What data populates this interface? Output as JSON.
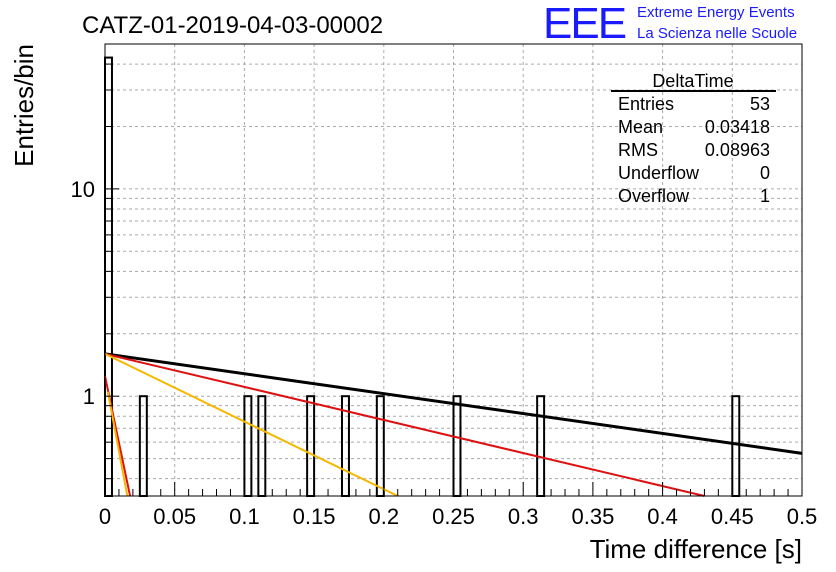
{
  "title": "CATZ-01-2019-04-03-00002",
  "logo": {
    "mark": "EEE",
    "line1": "Extreme Energy Events",
    "line2": "La Scienza nelle Scuole"
  },
  "stats": {
    "name": "DeltaTime",
    "rows": [
      {
        "label": "Entries",
        "value": "53"
      },
      {
        "label": "Mean",
        "value": "0.03418"
      },
      {
        "label": "RMS",
        "value": "0.08963"
      },
      {
        "label": "Underflow",
        "value": "0"
      },
      {
        "label": "Overflow",
        "value": "1"
      }
    ]
  },
  "chart_data": {
    "type": "bar",
    "title": "CATZ-01-2019-04-03-00002",
    "xlabel": "Time difference [s]",
    "ylabel": "Entries/bin",
    "xlim": [
      0,
      0.5
    ],
    "ylim": [
      0.33,
      50
    ],
    "yscale": "log",
    "grid": true,
    "x_ticks": [
      "0",
      "0.05",
      "0.1",
      "0.15",
      "0.2",
      "0.25",
      "0.3",
      "0.35",
      "0.4",
      "0.45",
      "0.5"
    ],
    "y_ticks": [
      "1",
      "10"
    ],
    "bin_width": 0.005,
    "bins": [
      {
        "x": 0.0,
        "value": 43
      },
      {
        "x": 0.025,
        "value": 1
      },
      {
        "x": 0.1,
        "value": 1
      },
      {
        "x": 0.11,
        "value": 1
      },
      {
        "x": 0.145,
        "value": 1
      },
      {
        "x": 0.17,
        "value": 1
      },
      {
        "x": 0.195,
        "value": 1
      },
      {
        "x": 0.25,
        "value": 1
      },
      {
        "x": 0.31,
        "value": 1
      },
      {
        "x": 0.45,
        "value": 1
      }
    ],
    "fits": [
      {
        "color": "#000000",
        "x": [
          0,
          0.5
        ],
        "y": [
          1.6,
          0.53
        ]
      },
      {
        "color": "#dd1111",
        "x": [
          0,
          0.43
        ],
        "y": [
          1.6,
          0.33
        ]
      },
      {
        "color": "#f5b800",
        "x": [
          0,
          0.21
        ],
        "y": [
          1.6,
          0.33
        ]
      },
      {
        "color": "#dd1111",
        "x": [
          0,
          0.018
        ],
        "y": [
          1.25,
          0.33
        ]
      },
      {
        "color": "#f5b800",
        "x": [
          0.002,
          0.016
        ],
        "y": [
          1.05,
          0.33
        ]
      }
    ],
    "legend_position": "top-right"
  }
}
